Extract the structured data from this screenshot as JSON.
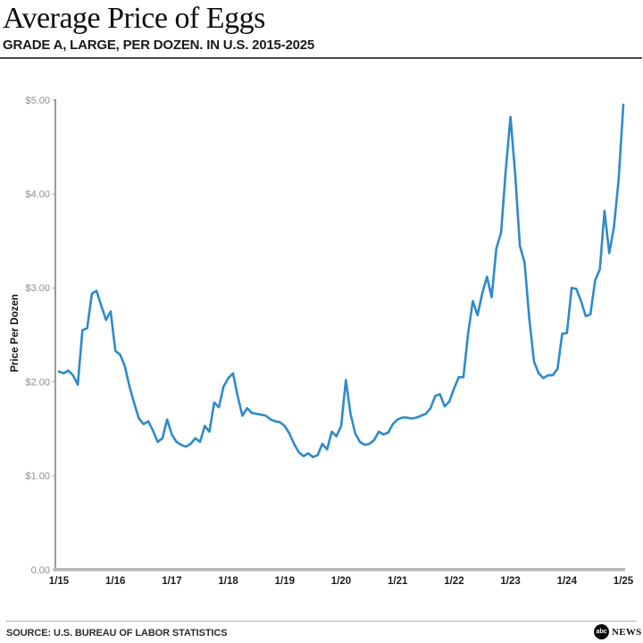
{
  "header": {
    "title": "Average Price of Eggs",
    "subtitle": "GRADE A, LARGE, PER DOZEN. IN U.S. 2015-2025"
  },
  "footer": {
    "source": "SOURCE: U.S. BUREAU OF LABOR STATISTICS",
    "logo": {
      "abc": "abc",
      "news": "NEWS"
    }
  },
  "chart_data": {
    "type": "line",
    "title": "Average Price of Eggs",
    "xlabel": "",
    "ylabel": "Price Per Dozen",
    "ylim": [
      0,
      5
    ],
    "grid": false,
    "legend": "none",
    "line_color": "#2e8bc9",
    "x_start": "January 2015",
    "x_end": "January 2025",
    "x_interval": "monthly",
    "y_ticks": [
      {
        "v": 0,
        "label": "0.00"
      },
      {
        "v": 1,
        "label": "$1.00"
      },
      {
        "v": 2,
        "label": "$2.00"
      },
      {
        "v": 3,
        "label": "$3.00"
      },
      {
        "v": 4,
        "label": "$4.00"
      },
      {
        "v": 5,
        "label": "$5.00"
      }
    ],
    "x_ticks": [
      {
        "m": 0,
        "label": "1/15"
      },
      {
        "m": 12,
        "label": "1/16"
      },
      {
        "m": 24,
        "label": "1/17"
      },
      {
        "m": 36,
        "label": "1/18"
      },
      {
        "m": 48,
        "label": "1/19"
      },
      {
        "m": 60,
        "label": "1/20"
      },
      {
        "m": 72,
        "label": "1/21"
      },
      {
        "m": 84,
        "label": "1/22"
      },
      {
        "m": 96,
        "label": "1/23"
      },
      {
        "m": 108,
        "label": "1/24"
      },
      {
        "m": 120,
        "label": "1/25"
      }
    ],
    "series": [
      {
        "name": "Average price of eggs, Grade A, large, per dozen (USD)",
        "values": [
          2.11,
          2.09,
          2.12,
          2.07,
          1.97,
          2.55,
          2.57,
          2.94,
          2.97,
          2.81,
          2.66,
          2.75,
          2.33,
          2.29,
          2.17,
          1.95,
          1.77,
          1.61,
          1.55,
          1.58,
          1.48,
          1.36,
          1.4,
          1.6,
          1.44,
          1.36,
          1.33,
          1.31,
          1.34,
          1.4,
          1.36,
          1.53,
          1.47,
          1.78,
          1.73,
          1.95,
          2.04,
          2.09,
          1.85,
          1.64,
          1.72,
          1.67,
          1.66,
          1.65,
          1.64,
          1.6,
          1.58,
          1.57,
          1.53,
          1.45,
          1.34,
          1.25,
          1.21,
          1.24,
          1.2,
          1.22,
          1.34,
          1.28,
          1.47,
          1.42,
          1.53,
          2.02,
          1.66,
          1.45,
          1.36,
          1.33,
          1.34,
          1.38,
          1.47,
          1.44,
          1.46,
          1.55,
          1.6,
          1.62,
          1.62,
          1.61,
          1.62,
          1.64,
          1.66,
          1.72,
          1.85,
          1.87,
          1.74,
          1.79,
          1.93,
          2.05,
          2.05,
          2.52,
          2.86,
          2.71,
          2.94,
          3.12,
          2.9,
          3.42,
          3.59,
          4.25,
          4.82,
          4.21,
          3.45,
          3.27,
          2.67,
          2.22,
          2.09,
          2.04,
          2.07,
          2.07,
          2.14,
          2.51,
          2.52,
          3.0,
          2.99,
          2.86,
          2.7,
          2.72,
          3.08,
          3.2,
          3.82,
          3.37,
          3.65,
          4.15,
          4.95
        ]
      }
    ]
  }
}
